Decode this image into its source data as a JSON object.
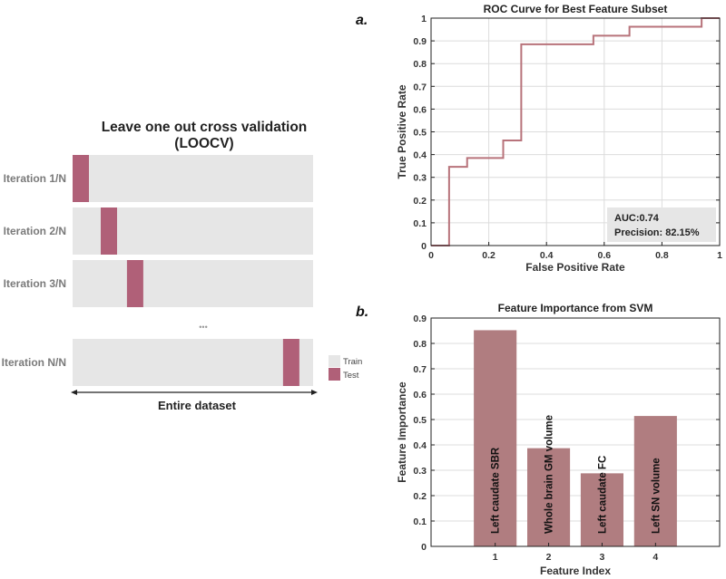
{
  "loocv": {
    "title_line1": "Leave one out cross validation",
    "title_line2": "(LOOCV)",
    "iterations": [
      {
        "label": "Iteration 1/N",
        "test_position": 0.0
      },
      {
        "label": "Iteration 2/N",
        "test_position": 0.117
      },
      {
        "label": "Iteration 3/N",
        "test_position": 0.226
      },
      {
        "label": "Iteration N/N",
        "test_position": 0.875
      }
    ],
    "ellipsis": "•••",
    "legend": {
      "train": "Train",
      "test": "Test"
    },
    "axis_label": "Entire dataset",
    "colors": {
      "train": "#e6e6e6",
      "test": "#b06078"
    }
  },
  "panel_labels": {
    "a": "a.",
    "b": "b."
  },
  "chart_data": [
    {
      "type": "line",
      "title": "ROC Curve for Best Feature Subset",
      "xlabel": "False Positive Rate",
      "ylabel": "True Positive Rate",
      "xlim": [
        0,
        1
      ],
      "ylim": [
        0,
        1
      ],
      "xticks": [
        "0",
        "0.2",
        "0.4",
        "0.6",
        "0.8",
        "1"
      ],
      "yticks": [
        "0",
        "0.1",
        "0.2",
        "0.3",
        "0.4",
        "0.5",
        "0.6",
        "0.7",
        "0.8",
        "0.9",
        "1"
      ],
      "grid": true,
      "series": [
        {
          "name": "ROC",
          "color": "#b8737b",
          "x": [
            0,
            0.0625,
            0.0625,
            0.125,
            0.125,
            0.25,
            0.25,
            0.3125,
            0.3125,
            0.5625,
            0.5625,
            0.6875,
            0.6875,
            0.9375,
            0.9375,
            1
          ],
          "y": [
            0,
            0,
            0.346,
            0.346,
            0.385,
            0.385,
            0.462,
            0.462,
            0.885,
            0.885,
            0.923,
            0.923,
            0.962,
            0.962,
            1,
            1
          ]
        }
      ],
      "annotation": {
        "auc": "AUC:0.74",
        "precision": "Precision: 82.15%",
        "placement": "bottom-right"
      }
    },
    {
      "type": "bar",
      "title": "Feature Importance from SVM",
      "xlabel": "Feature Index",
      "ylabel": "Feature Importance",
      "categories": [
        "1",
        "2",
        "3",
        "4"
      ],
      "values": [
        0.852,
        0.387,
        0.288,
        0.514
      ],
      "bar_labels": [
        "Left caudate SBR",
        "Whole brain GM volume",
        "Left caudate FC",
        "Left SN volume"
      ],
      "xlim": [
        -0.2,
        5.2
      ],
      "ylim": [
        0,
        0.9
      ],
      "yticks": [
        "0",
        "0.1",
        "0.2",
        "0.3",
        "0.4",
        "0.5",
        "0.6",
        "0.7",
        "0.8",
        "0.9"
      ],
      "grid": true,
      "color": "#b07d80"
    }
  ]
}
